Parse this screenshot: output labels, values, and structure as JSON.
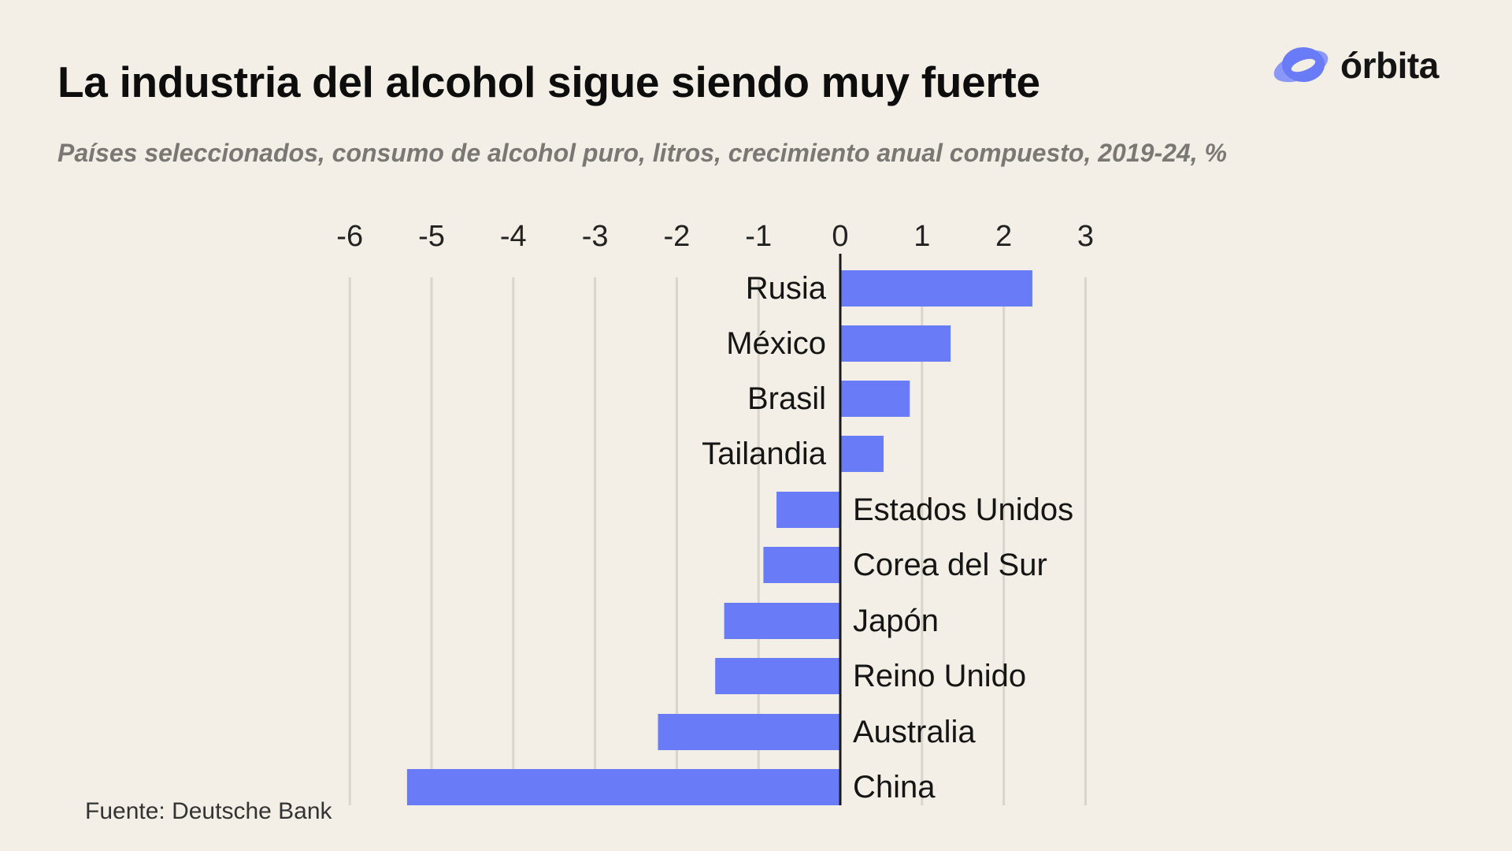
{
  "header": {
    "title": "La industria del alcohol sigue siendo muy fuerte",
    "subtitle": "Países seleccionados, consumo de alcohol puro, litros, crecimiento anual compuesto, 2019-24, %"
  },
  "brand": {
    "name": "órbita",
    "accent_color": "#6A7BF7"
  },
  "footer": {
    "source": "Fuente: Deutsche Bank"
  },
  "chart_data": {
    "type": "bar",
    "orientation": "horizontal",
    "title": "La industria del alcohol sigue siendo muy fuerte",
    "xlabel": "",
    "ylabel": "",
    "xlim": [
      -6,
      3
    ],
    "ticks": [
      "-6",
      "-5",
      "-4",
      "-3",
      "-2",
      "-1",
      "0",
      "1",
      "2",
      "3"
    ],
    "grid": true,
    "bar_color": "#6A7BF7",
    "categories": [
      "Rusia",
      "México",
      "Brasil",
      "Tailandia",
      "Estados Unidos",
      "Corea del Sur",
      "Japón",
      "Reino Unido",
      "Australia",
      "China"
    ],
    "values": [
      2.35,
      1.35,
      0.85,
      0.53,
      -0.78,
      -0.94,
      -1.42,
      -1.53,
      -2.23,
      -5.3
    ]
  }
}
